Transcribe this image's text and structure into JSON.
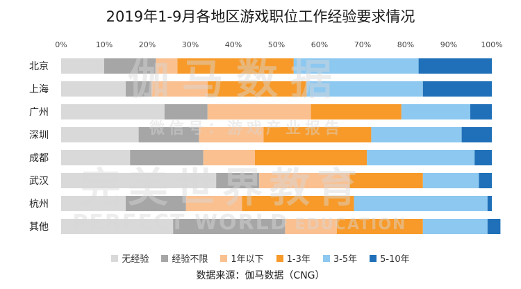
{
  "chart_data": {
    "type": "bar",
    "orientation": "horizontal",
    "stacked": "percent",
    "title": "2019年1-9月各地区游戏职位工作经验要求情况",
    "x_ticks": [
      "0%",
      "10%",
      "20%",
      "30%",
      "40%",
      "50%",
      "60%",
      "70%",
      "80%",
      "90%",
      "100%"
    ],
    "xlim": [
      0,
      100
    ],
    "categories": [
      "北京",
      "上海",
      "广州",
      "深圳",
      "成都",
      "武汉",
      "杭州",
      "其他"
    ],
    "series": [
      {
        "name": "无经验",
        "color": "#d9d9d9",
        "values": [
          10,
          15,
          24,
          18,
          16,
          36,
          15,
          26
        ]
      },
      {
        "name": "经验不限",
        "color": "#a6a6a6",
        "values": [
          12,
          6,
          10,
          14,
          17,
          10,
          14,
          26
        ]
      },
      {
        "name": "1年以下",
        "color": "#fac090",
        "values": [
          5,
          13,
          24,
          15,
          12,
          21,
          13,
          12
        ]
      },
      {
        "name": "1-3年",
        "color": "#f79a2a",
        "values": [
          27,
          23,
          21,
          25,
          26,
          17,
          26,
          20
        ]
      },
      {
        "name": "3-5年",
        "color": "#8cc8f0",
        "values": [
          29,
          27,
          16,
          21,
          25,
          13,
          31,
          15
        ]
      },
      {
        "name": "5-10年",
        "color": "#1f70b8",
        "values": [
          17,
          16,
          5,
          7,
          4,
          3,
          1,
          3
        ]
      }
    ],
    "legend_position": "bottom",
    "grid": false
  },
  "source": "数据来源：伽马数据（CNG）",
  "watermark": {
    "lines": [
      "伽马数据",
      "微信号：游戏产业报告",
      "完美世界教育",
      "PERFECT WORLD",
      "EDUCATION"
    ]
  }
}
